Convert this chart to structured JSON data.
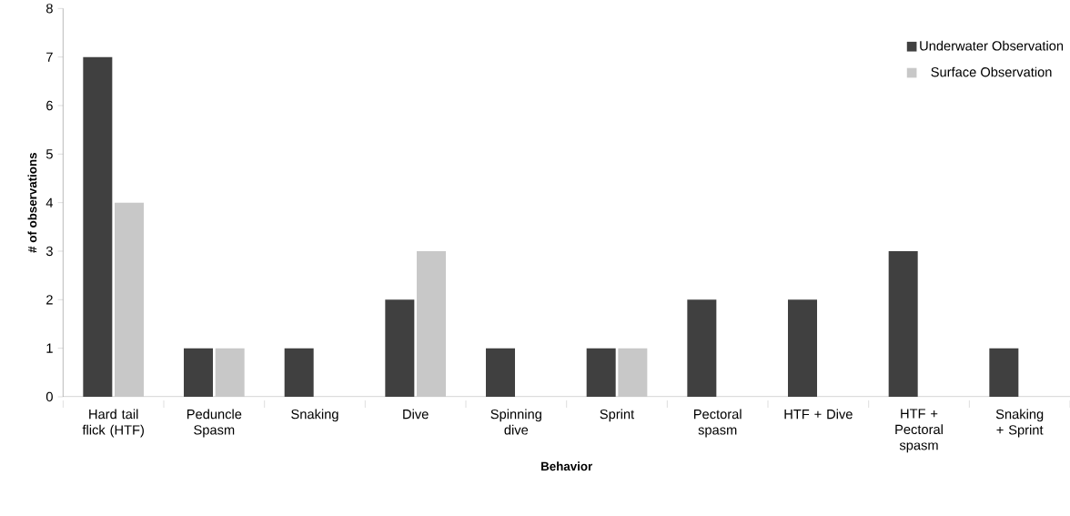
{
  "chart_data": {
    "type": "bar",
    "xlabel": "Behavior",
    "ylabel": "# of observations",
    "categories": [
      "Hard tail flick (HTF)",
      "Peduncle Spasm",
      "Snaking",
      "Dive",
      "Spinning dive",
      "Sprint",
      "Pectoral spasm",
      "HTF + Dive",
      "HTF + Pectoral spasm",
      "Snaking + Sprint"
    ],
    "series": [
      {
        "name": "Underwater Observation",
        "color": "#404040",
        "values": [
          7,
          1,
          1,
          2,
          1,
          1,
          2,
          2,
          3,
          1
        ]
      },
      {
        "name": "Surface Observation",
        "color": "#c8c8c8",
        "values": [
          4,
          1,
          0,
          3,
          0,
          1,
          0,
          0,
          0,
          0
        ]
      }
    ],
    "ylim": [
      0,
      8
    ],
    "yticks": [
      0,
      1,
      2,
      3,
      4,
      5,
      6,
      7,
      8
    ],
    "grid": false,
    "legend": "top right"
  }
}
